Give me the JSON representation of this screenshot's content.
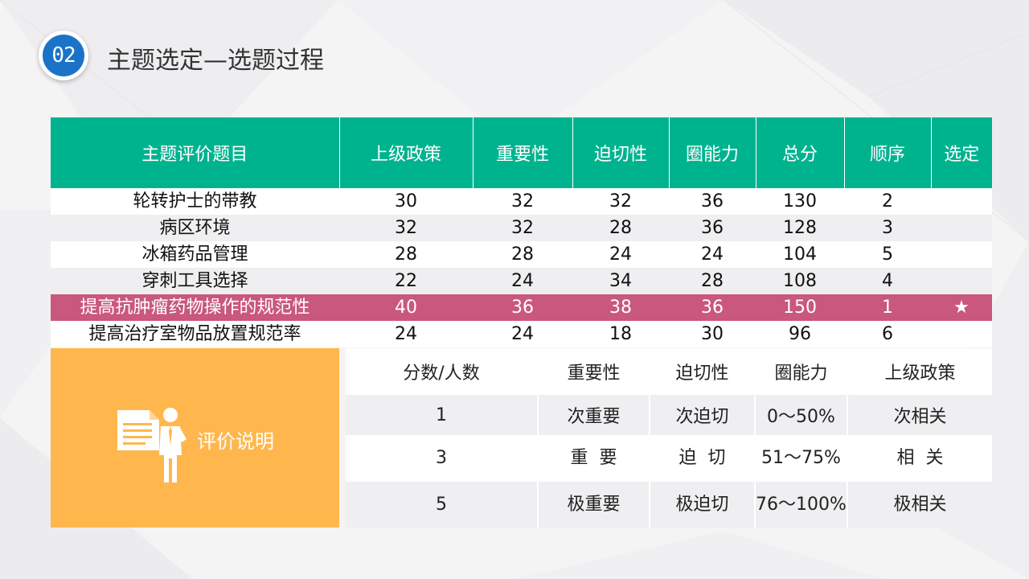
{
  "header": {
    "badge": "02",
    "title": "主题选定—选题过程"
  },
  "score_table": {
    "columns": [
      "主题评价题目",
      "上级政策",
      "重要性",
      "迫切性",
      "圈能力",
      "总分",
      "顺序",
      "选定"
    ],
    "rows": [
      [
        "轮转护士的带教",
        "30",
        "32",
        "32",
        "36",
        "130",
        "2",
        ""
      ],
      [
        "病区环境",
        "32",
        "32",
        "28",
        "36",
        "128",
        "3",
        ""
      ],
      [
        "冰箱药品管理",
        "28",
        "28",
        "24",
        "24",
        "104",
        "5",
        ""
      ],
      [
        "穿刺工具选择",
        "22",
        "24",
        "34",
        "28",
        "108",
        "4",
        ""
      ],
      [
        "提高抗肿瘤药物操作的规范性",
        "40",
        "36",
        "38",
        "36",
        "150",
        "1",
        "★"
      ],
      [
        "提高治疗室物品放置规范率",
        "24",
        "24",
        "18",
        "30",
        "96",
        "6",
        ""
      ]
    ],
    "highlight_color": "#c9577e",
    "header_color": "#00b38f"
  },
  "evaluation": {
    "label": "评价说明",
    "icon": "document-person-icon",
    "box_color": "#ffb74d",
    "columns": [
      "分数/人数",
      "重要性",
      "迫切性",
      "圈能力",
      "上级政策"
    ],
    "rows": [
      [
        "1",
        "次重要",
        "次迫切",
        "0～50%",
        "次相关"
      ],
      [
        "3",
        "重  要",
        "迫  切",
        "51～75%",
        "相  关"
      ],
      [
        "5",
        "极重要",
        "极迫切",
        "76～100%",
        "极相关"
      ]
    ]
  },
  "accent_color": "#1a73c7"
}
